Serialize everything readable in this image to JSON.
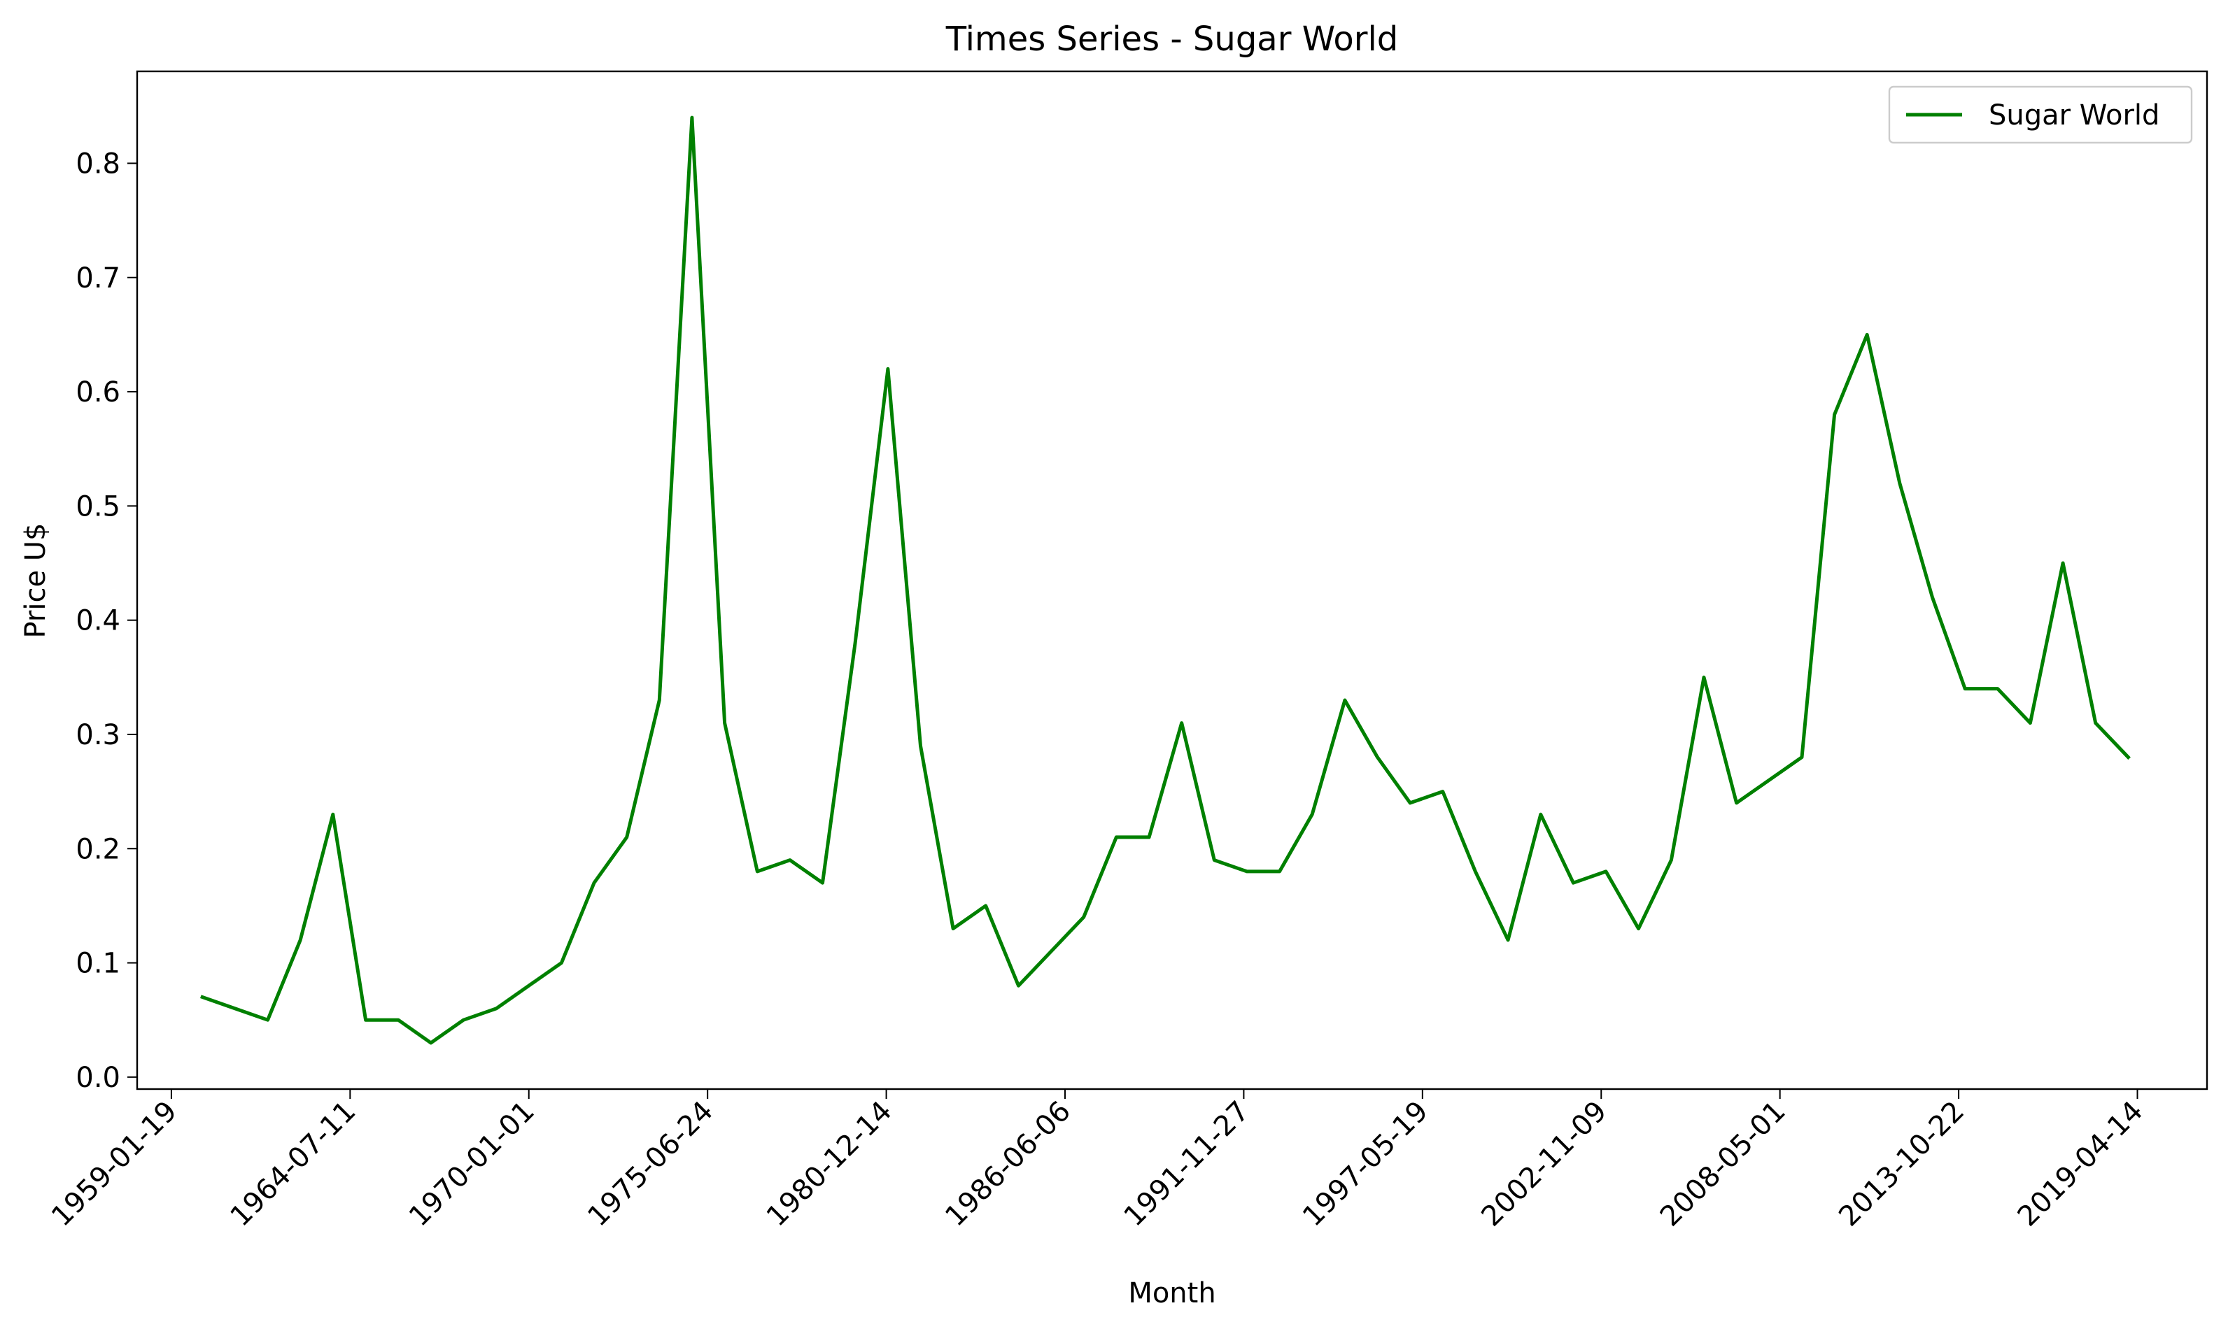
{
  "chart_data": {
    "type": "line",
    "title": "Times Series - Sugar World",
    "xlabel": "Month",
    "ylabel": "Price U$",
    "x_tick_labels": [
      "1959-01-19",
      "1964-07-11",
      "1970-01-01",
      "1975-06-24",
      "1980-12-14",
      "1986-06-06",
      "1991-11-27",
      "1997-05-19",
      "2002-11-09",
      "2008-05-01",
      "2013-10-22",
      "2019-04-14"
    ],
    "y_tick_labels": [
      "0.0",
      "0.1",
      "0.2",
      "0.3",
      "0.4",
      "0.5",
      "0.6",
      "0.7",
      "0.8"
    ],
    "ylim": [
      -0.0105,
      0.8805
    ],
    "xlim": [
      "1958-01-01",
      "2021-06-01"
    ],
    "grid": false,
    "legend_position": "top-right",
    "series": [
      {
        "name": "Sugar World",
        "color": "#008000",
        "x": [
          "1960-01-01",
          "1961-01-01",
          "1962-01-01",
          "1963-01-01",
          "1964-01-01",
          "1965-01-01",
          "1966-01-01",
          "1967-01-01",
          "1968-01-01",
          "1969-01-01",
          "1970-01-01",
          "1971-01-01",
          "1972-01-01",
          "1973-01-01",
          "1974-01-01",
          "1975-01-01",
          "1976-01-01",
          "1977-01-01",
          "1978-01-01",
          "1979-01-01",
          "1980-01-01",
          "1981-01-01",
          "1982-01-01",
          "1983-01-01",
          "1984-01-01",
          "1985-01-01",
          "1986-01-01",
          "1987-01-01",
          "1988-01-01",
          "1989-01-01",
          "1990-01-01",
          "1991-01-01",
          "1992-01-01",
          "1993-01-01",
          "1994-01-01",
          "1995-01-01",
          "1996-01-01",
          "1997-01-01",
          "1998-01-01",
          "1999-01-01",
          "2000-01-01",
          "2001-01-01",
          "2002-01-01",
          "2003-01-01",
          "2004-01-01",
          "2005-01-01",
          "2006-01-01",
          "2007-01-01",
          "2008-01-01",
          "2009-01-01",
          "2010-01-01",
          "2011-01-01",
          "2012-01-01",
          "2013-01-01",
          "2014-01-01",
          "2015-01-01",
          "2016-01-01",
          "2017-01-01",
          "2018-01-01",
          "2019-01-01"
        ],
        "values": [
          0.07,
          0.06,
          0.05,
          0.12,
          0.23,
          0.05,
          0.05,
          0.03,
          0.05,
          0.06,
          0.08,
          0.1,
          0.17,
          0.21,
          0.33,
          0.84,
          0.31,
          0.18,
          0.19,
          0.17,
          0.38,
          0.62,
          0.29,
          0.13,
          0.15,
          0.08,
          0.11,
          0.14,
          0.21,
          0.21,
          0.31,
          0.19,
          0.18,
          0.18,
          0.23,
          0.33,
          0.28,
          0.24,
          0.25,
          0.18,
          0.12,
          0.23,
          0.17,
          0.18,
          0.13,
          0.19,
          0.35,
          0.24,
          0.26,
          0.28,
          0.58,
          0.65,
          0.52,
          0.42,
          0.34,
          0.34,
          0.31,
          0.45,
          0.31,
          0.28
        ]
      }
    ]
  }
}
